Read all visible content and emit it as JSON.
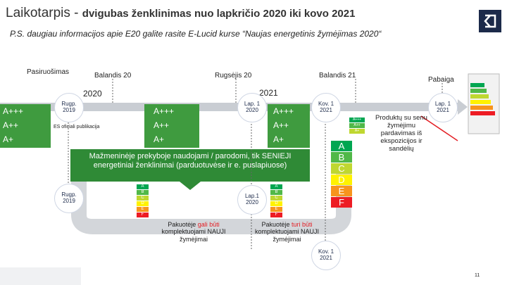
{
  "header": {
    "title": "Laikotarpis -",
    "title_rest": "dvigubas ženklinimas nuo lapkričio 2020 iki kovo 2021",
    "subtitle": "P.S. daugiau informacijos apie E20 galite rasite E-Lucid kurse “Naujas energetinis žymėjimas 2020“"
  },
  "timeline": {
    "phases": [
      "Pasiruošimas",
      "Balandis 20",
      "Rugsėjis 20",
      "Balandis 21",
      "Pabaiga"
    ],
    "years": [
      "2020",
      "2021"
    ]
  },
  "dates": {
    "top": [
      [
        "Rugp.",
        "2019"
      ],
      [
        "Lap. 1",
        "2020"
      ],
      [
        "Kov. 1",
        "2021"
      ],
      [
        "Lap. 1",
        "2021"
      ]
    ],
    "bottom": [
      [
        "Rugp.",
        "2019"
      ],
      [
        "Lap.1",
        "2020"
      ],
      [
        "Kov. 1",
        "2021"
      ]
    ]
  },
  "old_classes": [
    "A+++",
    "A++",
    "A+"
  ],
  "new_classes": [
    "A",
    "B",
    "C",
    "D",
    "E",
    "F"
  ],
  "notes": {
    "publication": "ES oficiali publikacija",
    "retail": "Mažmeninėje prekyboje naudojami / parodomi, tik SENIEJI energetiniai ženklinimai (parduotuvėse ir e. puslapiuose)",
    "sell_off": "Produktų su senu žymėjimu pardavimas iš ekspozicijos ir sandėlių",
    "may": [
      "Pakuotėje ",
      "gali būti",
      " komplektuojami NAUJI žymėjimai"
    ],
    "must": [
      "Pakuotėje ",
      "turi būti",
      " komplektuojami NAUJI žymėjimai"
    ]
  },
  "page_number": "11"
}
